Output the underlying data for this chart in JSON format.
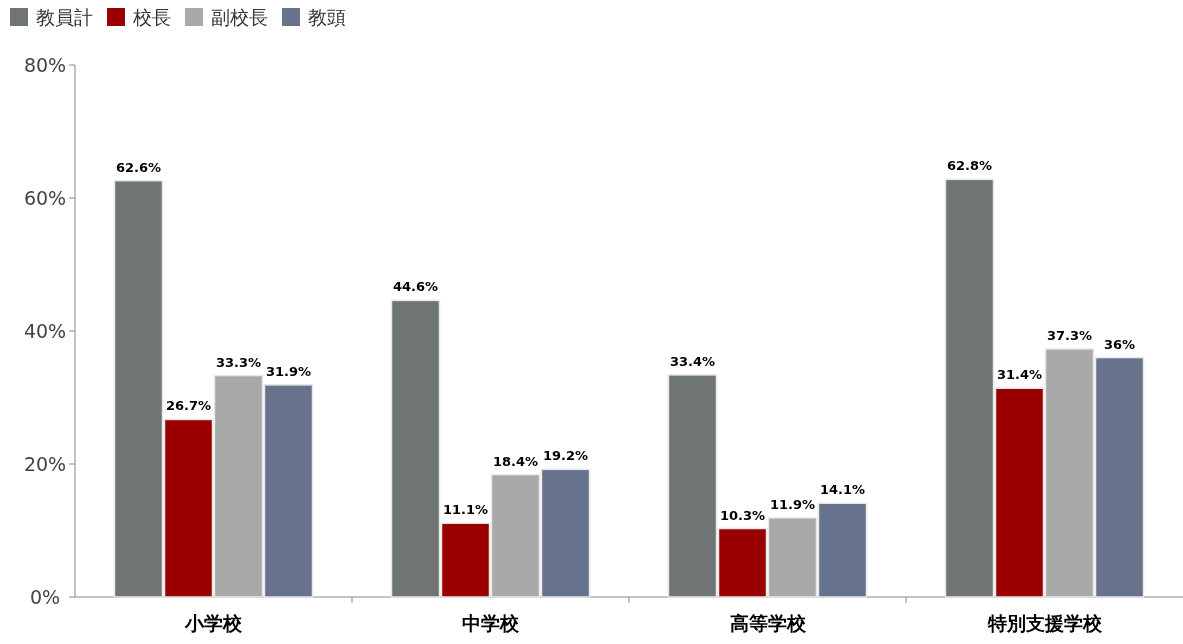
{
  "chart_data": {
    "type": "bar",
    "categories": [
      "小学校",
      "中学校",
      "高等学校",
      "特別支援学校"
    ],
    "series": [
      {
        "name": "教員計",
        "color": "#6e7572",
        "values": [
          62.6,
          44.6,
          33.4,
          62.8
        ],
        "value_labels": [
          "62.6%",
          "44.6%",
          "33.4%",
          "62.8%"
        ]
      },
      {
        "name": "校長",
        "color": "#9b0000",
        "values": [
          26.7,
          11.1,
          10.3,
          31.4
        ],
        "value_labels": [
          "26.7%",
          "11.1%",
          "10.3%",
          "31.4%"
        ]
      },
      {
        "name": "副校長",
        "color": "#a9a9a9",
        "values": [
          33.3,
          18.4,
          11.9,
          37.3
        ],
        "value_labels": [
          "33.3%",
          "18.4%",
          "11.9%",
          "37.3%"
        ]
      },
      {
        "name": "教頭",
        "color": "#67728c",
        "values": [
          31.9,
          19.2,
          14.1,
          36
        ],
        "value_labels": [
          "31.9%",
          "19.2%",
          "14.1%",
          "36%"
        ]
      }
    ],
    "ylim": [
      0,
      80
    ],
    "yticks": [
      {
        "value": 0,
        "label": "0%"
      },
      {
        "value": 20,
        "label": "20%"
      },
      {
        "value": 40,
        "label": "40%"
      },
      {
        "value": 60,
        "label": "60%"
      },
      {
        "value": 80,
        "label": "80%"
      }
    ],
    "grid": false,
    "legend": "top left"
  }
}
